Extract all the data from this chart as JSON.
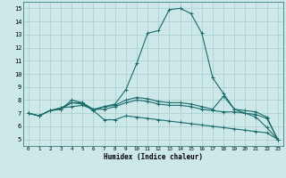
{
  "xlabel": "Humidex (Indice chaleur)",
  "bg_color": "#cce8e8",
  "grid_color": "#aacccc",
  "line_color": "#1a6b6b",
  "xlim": [
    -0.5,
    23.5
  ],
  "ylim": [
    4.5,
    15.5
  ],
  "xticks": [
    0,
    1,
    2,
    3,
    4,
    5,
    6,
    7,
    8,
    9,
    10,
    11,
    12,
    13,
    14,
    15,
    16,
    17,
    18,
    19,
    20,
    21,
    22,
    23
  ],
  "yticks": [
    5,
    6,
    7,
    8,
    9,
    10,
    11,
    12,
    13,
    14,
    15
  ],
  "lines": [
    {
      "x": [
        0,
        1,
        2,
        3,
        4,
        5,
        6,
        7,
        8,
        9,
        10,
        11,
        12,
        13,
        14,
        15,
        16,
        17,
        18,
        19,
        20,
        21,
        22,
        23
      ],
      "y": [
        7.0,
        6.8,
        7.2,
        7.3,
        8.0,
        7.8,
        7.2,
        7.5,
        7.7,
        8.8,
        10.8,
        13.1,
        13.3,
        14.9,
        15.0,
        14.6,
        13.1,
        9.7,
        8.5,
        7.3,
        7.0,
        6.7,
        5.9,
        5.0
      ]
    },
    {
      "x": [
        0,
        1,
        2,
        3,
        4,
        5,
        6,
        7,
        8,
        9,
        10,
        11,
        12,
        13,
        14,
        15,
        16,
        17,
        18,
        19,
        20,
        21,
        22,
        23
      ],
      "y": [
        7.0,
        6.8,
        7.2,
        7.4,
        7.8,
        7.7,
        7.2,
        6.5,
        6.5,
        6.8,
        6.7,
        6.6,
        6.5,
        6.4,
        6.3,
        6.2,
        6.1,
        6.0,
        5.9,
        5.8,
        5.7,
        5.6,
        5.5,
        5.0
      ]
    },
    {
      "x": [
        0,
        1,
        2,
        3,
        4,
        5,
        6,
        7,
        8,
        9,
        10,
        11,
        12,
        13,
        14,
        15,
        16,
        17,
        18,
        19,
        20,
        21,
        22,
        23
      ],
      "y": [
        7.0,
        6.8,
        7.2,
        7.3,
        7.8,
        7.8,
        7.3,
        7.5,
        7.6,
        8.0,
        8.2,
        8.1,
        7.9,
        7.8,
        7.8,
        7.7,
        7.5,
        7.3,
        8.3,
        7.3,
        7.2,
        7.1,
        6.7,
        5.0
      ]
    },
    {
      "x": [
        0,
        1,
        2,
        3,
        4,
        5,
        6,
        7,
        8,
        9,
        10,
        11,
        12,
        13,
        14,
        15,
        16,
        17,
        18,
        19,
        20,
        21,
        22,
        23
      ],
      "y": [
        7.0,
        6.8,
        7.2,
        7.4,
        7.5,
        7.6,
        7.3,
        7.3,
        7.5,
        7.8,
        8.0,
        7.9,
        7.7,
        7.6,
        7.6,
        7.5,
        7.3,
        7.2,
        7.1,
        7.1,
        7.0,
        6.9,
        6.6,
        5.0
      ]
    }
  ]
}
